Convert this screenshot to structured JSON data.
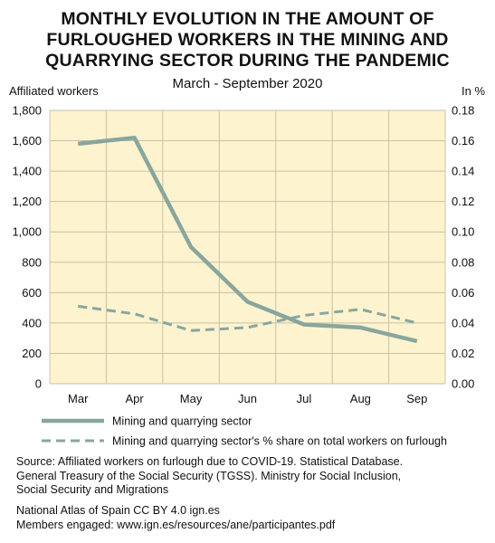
{
  "chart_data": {
    "type": "line",
    "title_lines": [
      "MONTHLY EVOLUTION IN THE AMOUNT OF",
      "FURLOUGHED WORKERS IN THE MINING AND",
      "QUARRYING SECTOR DURING THE PANDEMIC"
    ],
    "subtitle": "March - September 2020",
    "y_left_label": "Affiliated workers",
    "y_right_label": "In %",
    "categories": [
      "Mar",
      "Apr",
      "May",
      "Jun",
      "Jul",
      "Aug",
      "Sep"
    ],
    "y_left_ticks": [
      "0",
      "200",
      "400",
      "600",
      "800",
      "1,000",
      "1,200",
      "1,400",
      "1,600",
      "1,800"
    ],
    "y_right_ticks": [
      "0.00",
      "0.02",
      "0.04",
      "0.06",
      "0.08",
      "0.10",
      "0.12",
      "0.14",
      "0.16",
      "0.18"
    ],
    "y_left_range": [
      0,
      1800
    ],
    "y_right_range": [
      0,
      0.18
    ],
    "grid": true,
    "series": [
      {
        "name": "Mining and quarrying sector",
        "axis": "left",
        "style": "solid",
        "values": [
          1580,
          1620,
          900,
          540,
          390,
          370,
          280
        ]
      },
      {
        "name": "Mining and quarrying sector's % share on total workers on furlough",
        "axis": "right",
        "style": "dashed",
        "values": [
          0.051,
          0.046,
          0.035,
          0.037,
          0.045,
          0.049,
          0.04
        ]
      }
    ],
    "legend_position": "bottom"
  },
  "colors": {
    "plot_background": "#fdf3cf",
    "grid": "#c8c1a8",
    "series": "#88a69d"
  },
  "footer": {
    "source": [
      "Source: Affiliated workers on furlough due to COVID-19. Statistical Database.",
      "General Treasury of the Social Security (TGSS). Ministry for Social Inclusion,",
      "Social Security and Migrations"
    ],
    "atlas": [
      "National Atlas of Spain CC BY 4.0 ign.es",
      "Members engaged: www.ign.es/resources/ane/participantes.pdf"
    ]
  }
}
